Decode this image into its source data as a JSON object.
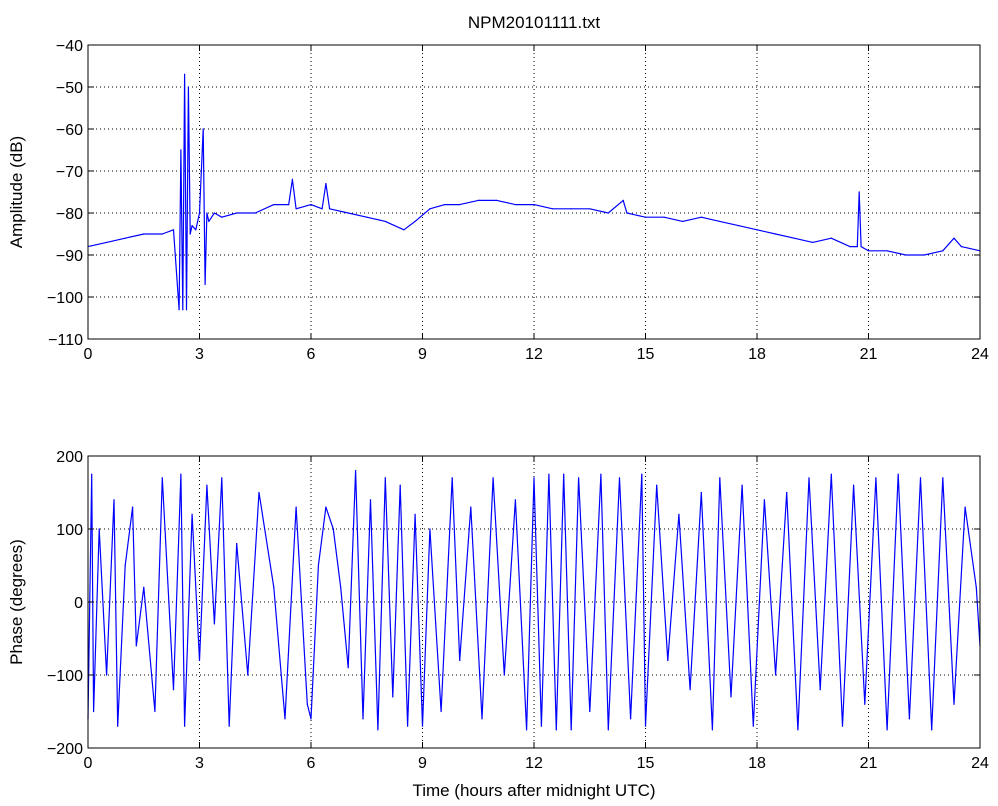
{
  "chart_data": [
    {
      "type": "line",
      "title": "NPM20101111.txt",
      "xlabel": "",
      "ylabel": "Amplitude (dB)",
      "xlim": [
        0,
        24
      ],
      "ylim": [
        -110,
        -40
      ],
      "xticks": [
        0,
        3,
        6,
        9,
        12,
        15,
        18,
        21,
        24
      ],
      "yticks": [
        -110,
        -100,
        -90,
        -80,
        -70,
        -60,
        -50,
        -40
      ],
      "grid": true,
      "line_color": "#0000ff",
      "series": [
        {
          "x": [
            0,
            0.5,
            1.0,
            1.5,
            2.0,
            2.3,
            2.45,
            2.5,
            2.55,
            2.6,
            2.65,
            2.7,
            2.75,
            2.8,
            2.9,
            3.0,
            3.1,
            3.15,
            3.2,
            3.25,
            3.4,
            3.6,
            4.0,
            4.5,
            5.0,
            5.4,
            5.5,
            5.6,
            6.0,
            6.3,
            6.4,
            6.5,
            7.0,
            7.5,
            8.0,
            8.5,
            8.8,
            9.2,
            9.6,
            10.0,
            10.5,
            11.0,
            11.5,
            12.0,
            12.5,
            13.0,
            13.5,
            14.0,
            14.4,
            14.5,
            15.0,
            15.5,
            16.0,
            16.5,
            17.0,
            17.5,
            18.0,
            18.5,
            19.0,
            19.5,
            20.0,
            20.5,
            20.7,
            20.75,
            20.8,
            21.0,
            21.5,
            22.0,
            22.5,
            23.0,
            23.3,
            23.5,
            24.0
          ],
          "y": [
            -88,
            -87,
            -86,
            -85,
            -85,
            -84,
            -103,
            -65,
            -103,
            -47,
            -103,
            -50,
            -85,
            -83,
            -84,
            -80,
            -60,
            -97,
            -80,
            -82,
            -80,
            -81,
            -80,
            -80,
            -78,
            -78,
            -72,
            -79,
            -78,
            -79,
            -73,
            -79,
            -80,
            -81,
            -82,
            -84,
            -82,
            -79,
            -78,
            -78,
            -77,
            -77,
            -78,
            -78,
            -79,
            -79,
            -79,
            -80,
            -77,
            -80,
            -81,
            -81,
            -82,
            -81,
            -82,
            -83,
            -84,
            -85,
            -86,
            -87,
            -86,
            -88,
            -88,
            -75,
            -88,
            -89,
            -89,
            -90,
            -90,
            -89,
            -86,
            -88,
            -89
          ]
        }
      ]
    },
    {
      "type": "line",
      "title": "",
      "xlabel": "Time (hours after midnight UTC)",
      "ylabel": "Phase (degrees)",
      "xlim": [
        0,
        24
      ],
      "ylim": [
        -200,
        200
      ],
      "xticks": [
        0,
        3,
        6,
        9,
        12,
        15,
        18,
        21,
        24
      ],
      "yticks": [
        -200,
        -100,
        0,
        100,
        200
      ],
      "grid": true,
      "line_color": "#0000ff",
      "series": [
        {
          "x": [
            0,
            0.1,
            0.15,
            0.3,
            0.5,
            0.7,
            0.8,
            1.0,
            1.2,
            1.3,
            1.5,
            1.8,
            2.0,
            2.3,
            2.5,
            2.6,
            2.8,
            3.0,
            3.2,
            3.4,
            3.6,
            3.8,
            4.0,
            4.3,
            4.6,
            5.0,
            5.3,
            5.6,
            5.9,
            6.0,
            6.2,
            6.4,
            6.6,
            6.8,
            7.0,
            7.2,
            7.4,
            7.6,
            7.8,
            8.0,
            8.2,
            8.4,
            8.6,
            8.8,
            9.0,
            9.2,
            9.5,
            9.8,
            10.0,
            10.3,
            10.6,
            10.9,
            11.2,
            11.5,
            11.8,
            12.0,
            12.2,
            12.4,
            12.6,
            12.8,
            13.0,
            13.2,
            13.5,
            13.8,
            14.0,
            14.3,
            14.6,
            14.9,
            15.0,
            15.3,
            15.6,
            15.9,
            16.2,
            16.5,
            16.8,
            17.0,
            17.3,
            17.6,
            17.9,
            18.2,
            18.5,
            18.8,
            19.1,
            19.4,
            19.7,
            20.0,
            20.3,
            20.6,
            20.9,
            21.2,
            21.5,
            21.8,
            22.1,
            22.4,
            22.7,
            23.0,
            23.3,
            23.6,
            23.9,
            24.0
          ],
          "y": [
            -160,
            175,
            -150,
            100,
            -100,
            140,
            -170,
            50,
            130,
            -60,
            20,
            -150,
            170,
            -120,
            175,
            -170,
            120,
            -80,
            160,
            -30,
            170,
            -170,
            80,
            -100,
            150,
            20,
            -160,
            130,
            -140,
            -160,
            50,
            130,
            100,
            20,
            -90,
            180,
            -160,
            140,
            -175,
            170,
            -130,
            160,
            -170,
            120,
            -170,
            100,
            -150,
            170,
            -80,
            130,
            -160,
            170,
            -100,
            140,
            -175,
            170,
            -170,
            175,
            -175,
            175,
            -175,
            170,
            -150,
            175,
            -175,
            170,
            -160,
            175,
            -170,
            160,
            -80,
            120,
            -120,
            150,
            -175,
            170,
            -130,
            160,
            -170,
            140,
            -100,
            150,
            -175,
            170,
            -120,
            175,
            -170,
            160,
            -140,
            170,
            -175,
            175,
            -160,
            170,
            -175,
            170,
            -140,
            130,
            20,
            -60
          ]
        }
      ]
    }
  ]
}
